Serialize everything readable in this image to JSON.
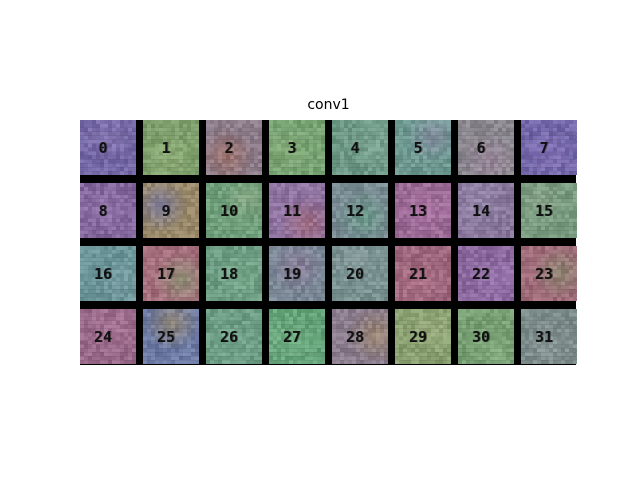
{
  "figure": {
    "title": "conv1"
  },
  "filters": {
    "rows": 4,
    "cols": 8,
    "tiles": [
      {
        "label": "0",
        "color": "#7468a6",
        "accent": "#8a7ab4"
      },
      {
        "label": "1",
        "color": "#7fa06c",
        "accent": "#92b07a"
      },
      {
        "label": "2",
        "color": "#8e7e8c",
        "accent": "#a27066"
      },
      {
        "label": "3",
        "color": "#78a474",
        "accent": "#8cb07e"
      },
      {
        "label": "4",
        "color": "#6f9a88",
        "accent": "#7fa694"
      },
      {
        "label": "5",
        "color": "#6e9a92",
        "accent": "#8c8ea6"
      },
      {
        "label": "6",
        "color": "#8c8890",
        "accent": "#a08aa0"
      },
      {
        "label": "7",
        "color": "#7468aa",
        "accent": "#8474b6"
      },
      {
        "label": "8",
        "color": "#84689e",
        "accent": "#9476aa"
      },
      {
        "label": "9",
        "color": "#9a8a6a",
        "accent": "#7a7aa8"
      },
      {
        "label": "10",
        "color": "#70a07c",
        "accent": "#8aa884"
      },
      {
        "label": "11",
        "color": "#9074a2",
        "accent": "#a66c7c"
      },
      {
        "label": "12",
        "color": "#7a8c94",
        "accent": "#6aa08a"
      },
      {
        "label": "13",
        "color": "#9c6c96",
        "accent": "#ac74a4"
      },
      {
        "label": "14",
        "color": "#8a789c",
        "accent": "#9a8eb0"
      },
      {
        "label": "15",
        "color": "#7a9c80",
        "accent": "#8aa48a"
      },
      {
        "label": "16",
        "color": "#6c969a",
        "accent": "#7aa0a4"
      },
      {
        "label": "17",
        "color": "#a6707e",
        "accent": "#8e9a78"
      },
      {
        "label": "18",
        "color": "#6e9e84",
        "accent": "#7cac8e"
      },
      {
        "label": "19",
        "color": "#7c8a98",
        "accent": "#8e7c9a"
      },
      {
        "label": "20",
        "color": "#7a9292",
        "accent": "#889c9c"
      },
      {
        "label": "21",
        "color": "#a0687e",
        "accent": "#b0748a"
      },
      {
        "label": "22",
        "color": "#8c6aa0",
        "accent": "#9a76ae"
      },
      {
        "label": "23",
        "color": "#a06c7a",
        "accent": "#8a8c70"
      },
      {
        "label": "24",
        "color": "#9a6a8a",
        "accent": "#a87698"
      },
      {
        "label": "25",
        "color": "#6e7ca6",
        "accent": "#9a8a6e"
      },
      {
        "label": "26",
        "color": "#6e9e86",
        "accent": "#7aaa92"
      },
      {
        "label": "27",
        "color": "#66a47a",
        "accent": "#74b086"
      },
      {
        "label": "28",
        "color": "#8c7e8e",
        "accent": "#a08a6e"
      },
      {
        "label": "29",
        "color": "#8aa070",
        "accent": "#9aac7e"
      },
      {
        "label": "30",
        "color": "#78a074",
        "accent": "#86ac80"
      },
      {
        "label": "31",
        "color": "#7c8c8a",
        "accent": "#8c9a98"
      }
    ]
  }
}
